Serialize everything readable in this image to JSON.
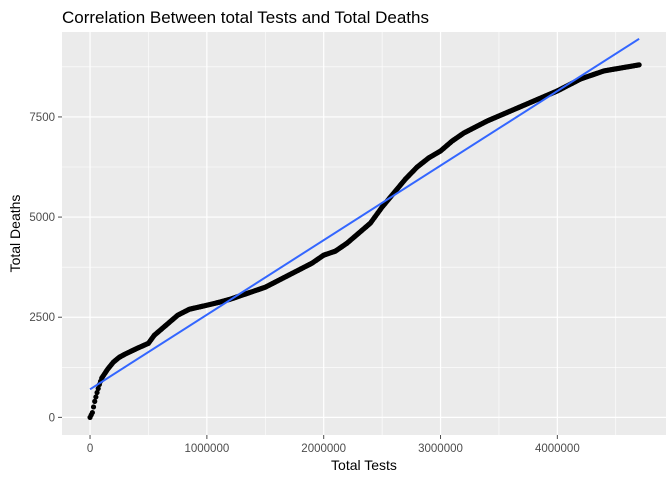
{
  "chart_data": {
    "type": "scatter",
    "title": "Correlation Between total Tests and Total Deaths",
    "xlabel": "Total Tests",
    "ylabel": "Total Deaths",
    "xlim": [
      -240000,
      4930000
    ],
    "ylim": [
      -440,
      9620
    ],
    "x_ticks": [
      0,
      1000000,
      2000000,
      3000000,
      4000000
    ],
    "x_tick_labels": [
      "0",
      "1000000",
      "2000000",
      "3000000",
      "4000000"
    ],
    "y_ticks": [
      0,
      2500,
      5000,
      7500
    ],
    "y_tick_labels": [
      "0",
      "2500",
      "5000",
      "7500"
    ],
    "grid": true,
    "legend": "none",
    "colors": {
      "panel": "#EBEBEB",
      "grid": "#FFFFFF",
      "points": "#000000",
      "fit_line": "#3366FF",
      "tick": "#4D4D4D"
    },
    "curve_anchors": [
      [
        0,
        0
      ],
      [
        20000,
        120
      ],
      [
        40000,
        400
      ],
      [
        60000,
        620
      ],
      [
        80000,
        820
      ],
      [
        100000,
        980
      ],
      [
        150000,
        1200
      ],
      [
        200000,
        1380
      ],
      [
        250000,
        1500
      ],
      [
        300000,
        1580
      ],
      [
        400000,
        1720
      ],
      [
        500000,
        1850
      ],
      [
        550000,
        2050
      ],
      [
        650000,
        2300
      ],
      [
        750000,
        2550
      ],
      [
        850000,
        2700
      ],
      [
        1000000,
        2800
      ],
      [
        1100000,
        2870
      ],
      [
        1200000,
        2950
      ],
      [
        1300000,
        3050
      ],
      [
        1500000,
        3250
      ],
      [
        1700000,
        3550
      ],
      [
        1900000,
        3850
      ],
      [
        2000000,
        4050
      ],
      [
        2100000,
        4150
      ],
      [
        2200000,
        4350
      ],
      [
        2300000,
        4600
      ],
      [
        2400000,
        4850
      ],
      [
        2500000,
        5250
      ],
      [
        2600000,
        5600
      ],
      [
        2700000,
        5950
      ],
      [
        2800000,
        6250
      ],
      [
        2900000,
        6480
      ],
      [
        3000000,
        6650
      ],
      [
        3100000,
        6900
      ],
      [
        3200000,
        7100
      ],
      [
        3400000,
        7400
      ],
      [
        3600000,
        7650
      ],
      [
        3800000,
        7900
      ],
      [
        4000000,
        8150
      ],
      [
        4200000,
        8450
      ],
      [
        4400000,
        8650
      ],
      [
        4700000,
        8800
      ]
    ],
    "fit_line": {
      "x": [
        0,
        4700000
      ],
      "y": [
        700,
        9450
      ]
    }
  }
}
